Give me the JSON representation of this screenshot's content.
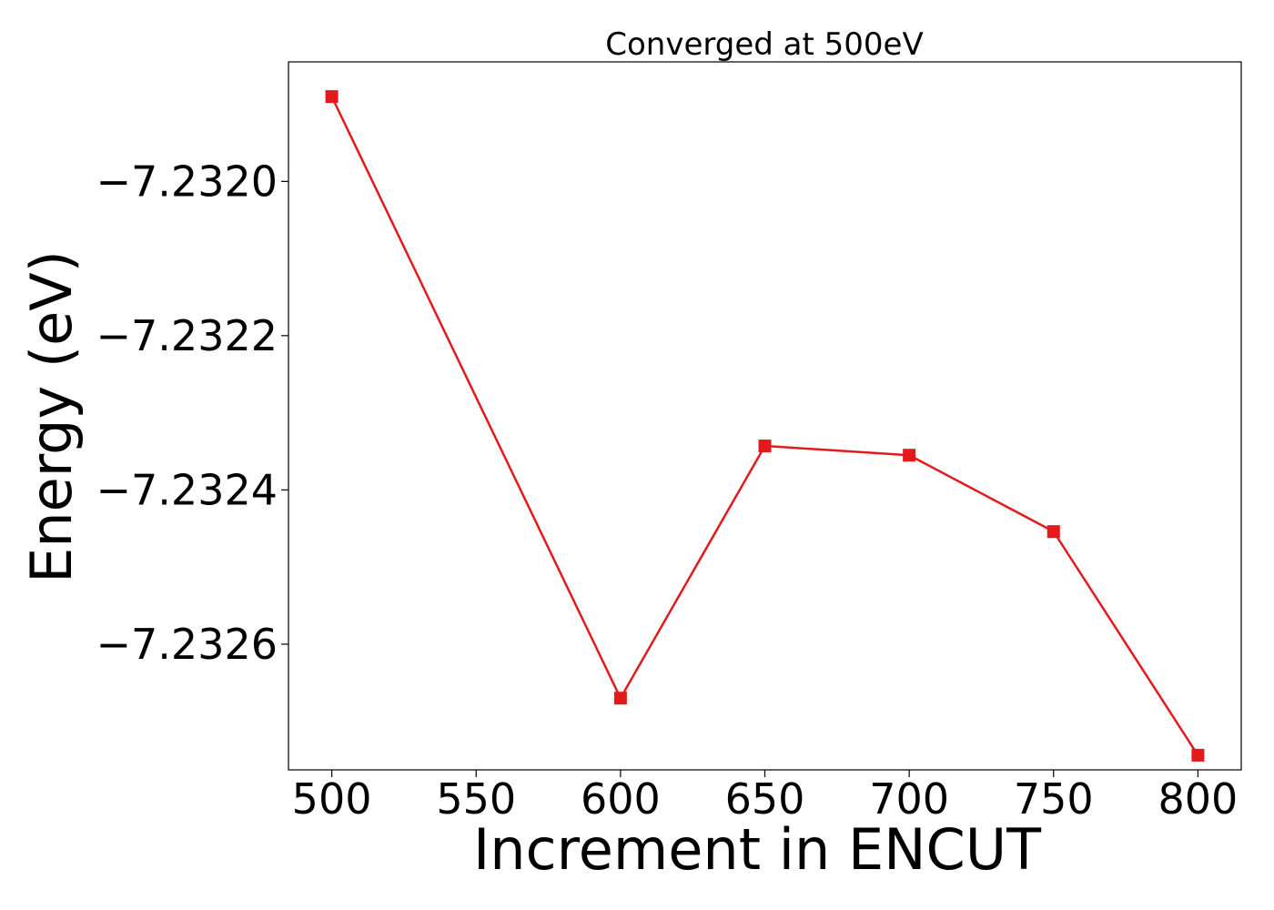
{
  "chart_data": {
    "type": "line",
    "title": "Converged at 500eV",
    "xlabel": "Increment in ENCUT",
    "ylabel": "Energy (eV)",
    "x": [
      500,
      600,
      650,
      700,
      750,
      800
    ],
    "series": [
      {
        "values": [
          -7.23189,
          -7.23267,
          -7.232343,
          -7.232355,
          -7.232454,
          -7.232744
        ],
        "color": "#e31a1c",
        "marker": "square"
      }
    ],
    "xlim": [
      485,
      815
    ],
    "ylim": [
      -7.232763,
      -7.231845
    ],
    "xticks": [
      500,
      550,
      600,
      650,
      700,
      750,
      800
    ],
    "xtick_labels": [
      "500",
      "550",
      "600",
      "650",
      "700",
      "750",
      "800"
    ],
    "yticks": [
      -7.232,
      -7.2322,
      -7.2324,
      -7.2326
    ],
    "ytick_labels": [
      "−7.2320",
      "−7.2322",
      "−7.2324",
      "−7.2326"
    ],
    "grid": false,
    "legend": "none"
  }
}
